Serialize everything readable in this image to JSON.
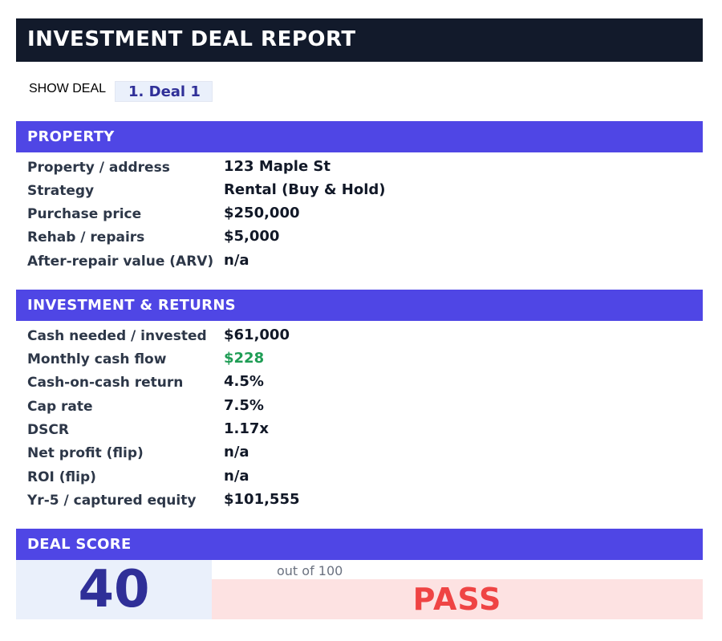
{
  "header": {
    "title": "INVESTMENT DEAL REPORT"
  },
  "deal_selector": {
    "label": "SHOW DEAL",
    "selected": "1. Deal 1"
  },
  "property": {
    "heading": "PROPERTY",
    "rows": [
      {
        "label": "Property / address",
        "value": "123 Maple St"
      },
      {
        "label": "Strategy",
        "value": "Rental (Buy & Hold)"
      },
      {
        "label": "Purchase price",
        "value": "$250,000"
      },
      {
        "label": "Rehab / repairs",
        "value": "$5,000"
      },
      {
        "label": "After-repair value (ARV)",
        "value": "n/a"
      }
    ]
  },
  "returns": {
    "heading": "INVESTMENT & RETURNS",
    "rows": [
      {
        "label": "Cash needed / invested",
        "value": "$61,000"
      },
      {
        "label": "Monthly cash flow",
        "value": "$228"
      },
      {
        "label": "Cash-on-cash return",
        "value": "4.5%"
      },
      {
        "label": "Cap rate",
        "value": "7.5%"
      },
      {
        "label": "DSCR",
        "value": "1.17x"
      },
      {
        "label": "Net profit (flip)",
        "value": "n/a"
      },
      {
        "label": "ROI (flip)",
        "value": "n/a"
      },
      {
        "label": "Yr-5 / captured equity",
        "value": "$101,555"
      }
    ]
  },
  "score": {
    "heading": "DEAL SCORE",
    "value": "40",
    "out_of": "out of 100",
    "verdict": "PASS"
  },
  "colors": {
    "title_bar": "#121a2b",
    "section_header": "#4f46e5",
    "score_text": "#2f2f98",
    "positive": "#1f9d55",
    "verdict_text": "#ef4444",
    "verdict_bg": "#fde2e2"
  }
}
